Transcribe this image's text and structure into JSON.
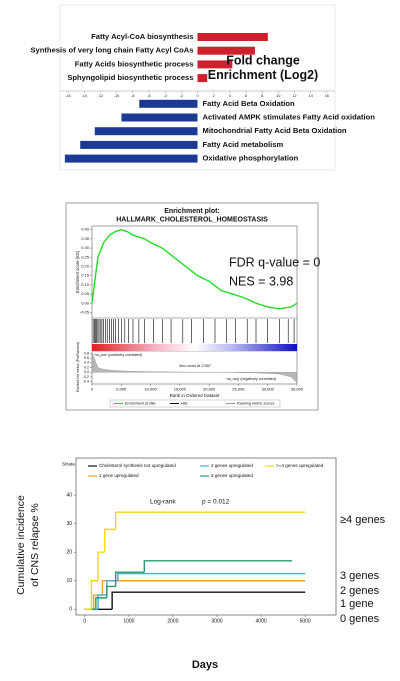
{
  "chart_data": [
    {
      "type": "bar",
      "orientation": "horizontal",
      "categories": [
        "Fatty Acyl-CoA biosynthesis",
        "Synthesis of very long chain Fatty Acyl CoAs",
        "Fatty Acids biosynthetic process",
        "Sphyngolipid biosynthetic process",
        "Fatty Acid Beta Oxidation",
        "Activated AMPK stimulates Fatty Acid oxidation",
        "Mitochondrial Fatty Acid Beta Oxidation",
        "Fatty Acid metabolism",
        "Oxidative phosphorylation"
      ],
      "values": [
        8.7,
        7.1,
        4.3,
        1.2,
        -7.2,
        -9.4,
        -12.7,
        -14.5,
        -16.4
      ],
      "positive_color": "#d0202e",
      "negative_color": "#1c3a94",
      "xlim": [
        -17,
        17
      ],
      "xticks": [
        -16,
        -14,
        -12,
        -10,
        -8,
        -6,
        -4,
        -2,
        0,
        2,
        4,
        6,
        8,
        10,
        12,
        14,
        16
      ],
      "annotation": [
        "Fold change",
        "Enrichment (Log2)"
      ]
    },
    {
      "type": "line",
      "title": [
        "Enrichment plot:",
        "HALLMARK_CHOLESTEROL_HOMEOSTASIS"
      ],
      "ylabel": "Enrichment score (ES)",
      "y2label": "Ranked list metric (PreRanked)",
      "xlabel": "Rank in Ordered Dataset",
      "x": [
        0,
        1000,
        2000,
        3000,
        4000,
        5000,
        6000,
        7000,
        8000,
        9000,
        10000,
        12000,
        14000,
        16000,
        18000,
        20000,
        22000,
        24000,
        26000,
        28000,
        30000,
        32000,
        34000,
        35000
      ],
      "series": [
        {
          "name": "Enrichment profile",
          "color": "#22dd22",
          "values": [
            0,
            0.25,
            0.33,
            0.37,
            0.39,
            0.4,
            0.39,
            0.37,
            0.36,
            0.35,
            0.33,
            0.3,
            0.25,
            0.2,
            0.15,
            0.12,
            0.07,
            0.05,
            0.03,
            0,
            -0.02,
            -0.03,
            -0.02,
            0
          ]
        },
        {
          "name": "Ranking metric scores",
          "color": "#999999",
          "axis": "y2",
          "values": [
            0.85,
            0.2,
            0.12,
            0.09,
            0.07,
            0.06,
            0.05,
            0.04,
            0.035,
            0.03,
            0.025,
            0.02,
            0.01,
            0.005,
            0.002,
            0,
            -0.005,
            -0.01,
            -0.02,
            -0.03,
            -0.05,
            -0.08,
            -0.2,
            -0.45
          ]
        }
      ],
      "hits": {
        "name": "Hits",
        "color": "#000000",
        "x": [
          200,
          400,
          600,
          800,
          1000,
          1200,
          1500,
          1700,
          2000,
          2300,
          2600,
          3000,
          3300,
          3700,
          4000,
          4500,
          5000,
          5600,
          6200,
          7000,
          8000,
          9000,
          10500,
          12000,
          13500,
          15500,
          17000,
          19000,
          21000,
          23000,
          24500,
          26500,
          28000,
          30000,
          32000,
          33500,
          34500
        ]
      },
      "xlim": [
        0,
        35000
      ],
      "xticks": [
        0,
        {
          "value": 5000,
          "label": "5,000"
        },
        {
          "value": 10000,
          "label": "10,000"
        },
        {
          "value": 15000,
          "label": "15,000"
        },
        {
          "value": 20000,
          "label": "20,000"
        },
        {
          "value": 25000,
          "label": "25,000"
        },
        {
          "value": 30000,
          "label": "30,000"
        },
        {
          "value": 35000,
          "label": "35,000"
        }
      ],
      "ylim": [
        -0.08,
        0.42
      ],
      "yticks": [
        {
          "value": 0.4,
          "label": "0.40"
        },
        0.35,
        {
          "value": 0.3,
          "label": "0.30"
        },
        0.25,
        {
          "value": 0.2,
          "label": "0.20"
        },
        0.15,
        {
          "value": 0.1,
          "label": "0.10"
        },
        0.05,
        {
          "value": 0,
          "label": "0.00"
        },
        -0.05
      ],
      "y2lim": [
        -0.5,
        0.9
      ],
      "y2ticks": [
        0.8,
        0.6,
        0.4,
        0.2,
        {
          "value": 0,
          "label": "0.0"
        },
        -0.2,
        -0.4
      ],
      "annotations": [
        "FDR q-value = 0",
        "NES = 3.98"
      ],
      "pos_label": "'na_pos' (positively correlated)",
      "neg_label": "'na_neg' (negatively correlated)",
      "zero_cross": "Zero cross at 17467"
    },
    {
      "type": "step",
      "legend_title": "Strata",
      "annotations": [
        "Log-rank",
        "p = 0.012"
      ],
      "xlabel": "Days",
      "ylabel": [
        "Cumulative incidence",
        "of CNS relapse %"
      ],
      "xlim": [
        -200,
        5700
      ],
      "xticks": [
        0,
        1000,
        2000,
        3000,
        4000,
        5000
      ],
      "ylim": [
        -2,
        53
      ],
      "yticks": [
        0,
        10,
        20,
        30,
        40
      ],
      "series": [
        {
          "name": "Cholesterol synthesis not upregulated",
          "color": "#111111",
          "end_label": "0 genes",
          "x": [
            0,
            620,
            5000
          ],
          "values": [
            0,
            6,
            6
          ]
        },
        {
          "name": "1 gene upregulated",
          "color": "#f0a030",
          "end_label": "1 gene",
          "x": [
            0,
            200,
            400,
            5000
          ],
          "values": [
            0,
            5,
            10,
            10
          ]
        },
        {
          "name": "2 genes upregulated",
          "color": "#4aa8d8",
          "end_label": "2 genes",
          "x": [
            0,
            300,
            500,
            750,
            5000
          ],
          "values": [
            0,
            5,
            10,
            12.5,
            12.5
          ]
        },
        {
          "name": "3 genes upregulated",
          "color": "#2a9a6a",
          "end_label": "3 genes",
          "x": [
            0,
            250,
            500,
            700,
            1350,
            4700
          ],
          "values": [
            0,
            4,
            8,
            13,
            17,
            17
          ]
        },
        {
          "name": ">=4 genes upregulated",
          "color": "#f5d81a",
          "end_label": "≥4 genes",
          "x": [
            0,
            150,
            300,
            450,
            700,
            5000
          ],
          "values": [
            0,
            10,
            20,
            28,
            34,
            34
          ]
        }
      ]
    }
  ]
}
